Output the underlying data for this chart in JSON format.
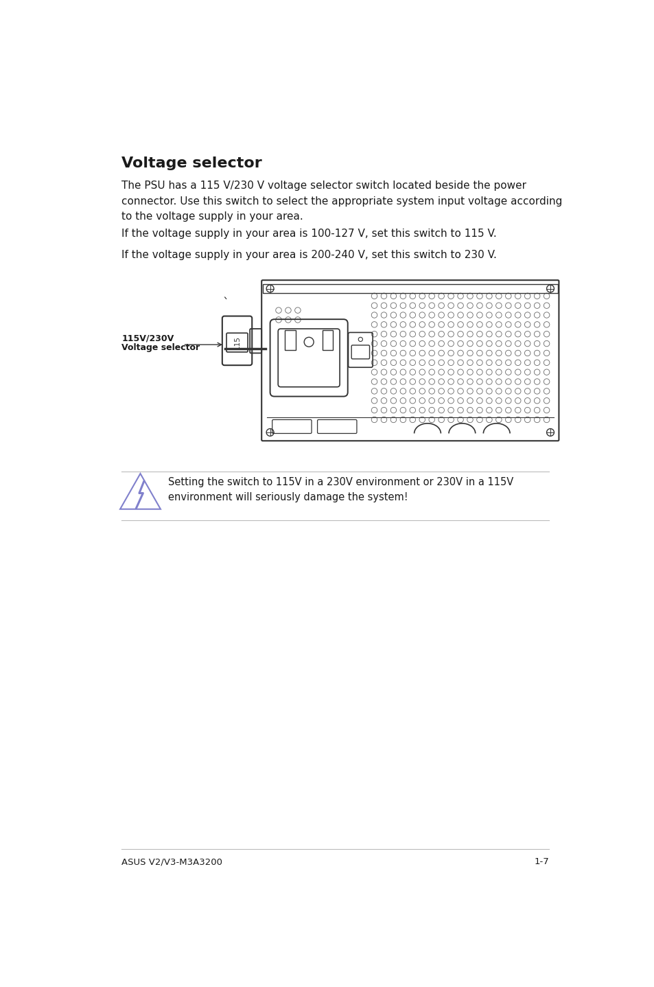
{
  "title": "Voltage selector",
  "body_text": "The PSU has a 115 V/230 V voltage selector switch located beside the power\nconnector. Use this switch to select the appropriate system input voltage according\nto the voltage supply in your area.",
  "line1": "If the voltage supply in your area is 100-127 V, set this switch to 115 V.",
  "line2": "If the voltage supply in your area is 200-240 V, set this switch to 230 V.",
  "label_top": "115V/230V",
  "label_bottom": "Voltage selector",
  "warning_text": "Setting the switch to 115V in a 230V environment or 230V in a 115V\nenvironment will seriously damage the system!",
  "footer_left": "ASUS V2/V3-M3A3200",
  "footer_right": "1-7",
  "bg_color": "#ffffff",
  "text_color": "#1a1a1a",
  "line_color": "#333333",
  "hole_color": "#666666",
  "warn_icon_color": "#8080cc",
  "gray_line": "#bbbbbb"
}
